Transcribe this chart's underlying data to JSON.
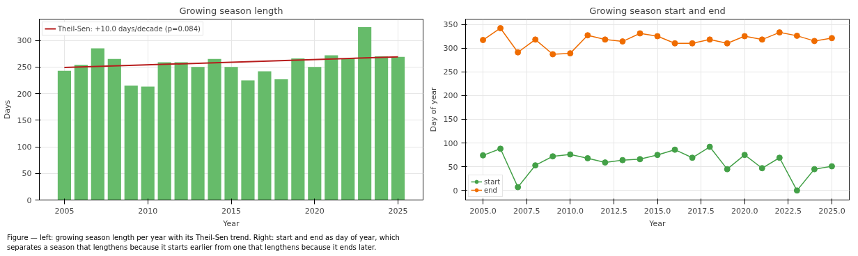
{
  "chart_data": [
    {
      "type": "bar",
      "title": "Growing season length",
      "xlabel": "Year",
      "ylabel": "Days",
      "x": [
        2005,
        2006,
        2007,
        2008,
        2009,
        2010,
        2011,
        2012,
        2013,
        2014,
        2015,
        2016,
        2017,
        2018,
        2019,
        2020,
        2021,
        2022,
        2023,
        2024,
        2025
      ],
      "series": [
        {
          "color": "#66bb6a",
          "values": [
            243,
            254,
            285,
            265,
            215,
            213,
            259,
            259,
            250,
            265,
            250,
            225,
            242,
            227,
            266,
            250,
            272,
            266,
            325,
            270,
            269
          ]
        },
        {
          "type": "line",
          "name": "Theil-Sen: +10.0 days/decade (p=0.084)",
          "color": "#b71c1c",
          "x": [
            2005,
            2025
          ],
          "values": [
            249,
            269
          ]
        }
      ],
      "xlim": [
        2003.5,
        2026.5
      ],
      "xticks": [
        2005,
        2010,
        2015,
        2020,
        2025
      ],
      "ylim": [
        0,
        340
      ],
      "yticks": [
        0,
        50,
        100,
        150,
        200,
        250,
        300
      ],
      "grid": true,
      "legend": "top left",
      "annotations": [
        "Figure — left: growing season length per year with its Theil-Sen trend. Right: start and end as day of year, which separates a season that lengthens because it starts earlier from one that lengthens because it ends later."
      ]
    },
    {
      "type": "line",
      "title": "Growing season start and end",
      "xlabel": "Year",
      "ylabel": "Day of year",
      "x": [
        2005,
        2006,
        2007,
        2008,
        2009,
        2010,
        2011,
        2012,
        2013,
        2014,
        2015,
        2016,
        2017,
        2018,
        2019,
        2020,
        2021,
        2022,
        2023,
        2024,
        2025
      ],
      "series": [
        {
          "name": "start",
          "color": "#43a047",
          "values": [
            74,
            88,
            7,
            53,
            72,
            76,
            68,
            59,
            64,
            66,
            75,
            86,
            69,
            92,
            45,
            75,
            47,
            69,
            0,
            45,
            51
          ]
        },
        {
          "name": "end",
          "color": "#ef6c00",
          "values": [
            317,
            342,
            291,
            318,
            287,
            289,
            327,
            318,
            314,
            331,
            325,
            310,
            310,
            318,
            310,
            325,
            318,
            333,
            326,
            315,
            321
          ]
        }
      ],
      "xlim": [
        2004,
        2026
      ],
      "xticks": [
        {
          "value": 2005,
          "label": "2005.0"
        },
        {
          "value": 2007.5,
          "label": "2007.5"
        },
        {
          "value": 2010,
          "label": "2010.0"
        },
        {
          "value": 2012.5,
          "label": "2012.5"
        },
        {
          "value": 2015,
          "label": "2015.0"
        },
        {
          "value": 2017.5,
          "label": "2017.5"
        },
        {
          "value": 2020,
          "label": "2020.0"
        },
        {
          "value": 2022.5,
          "label": "2022.5"
        },
        {
          "value": 2025,
          "label": "2025.0"
        }
      ],
      "ylim": [
        -20,
        361
      ],
      "yticks": [
        0,
        50,
        100,
        150,
        200,
        250,
        300,
        350
      ],
      "grid": true,
      "legend": "bottom left",
      "marker": "circle"
    }
  ]
}
